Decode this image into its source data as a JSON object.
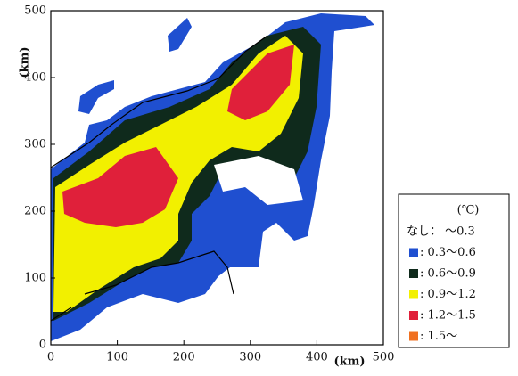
{
  "axes": {
    "xlabel": "(km)",
    "ylabel": "(km)",
    "xlim": [
      0,
      500
    ],
    "ylim": [
      0,
      500
    ],
    "xticks": [
      0,
      100,
      200,
      300,
      400,
      500
    ],
    "yticks": [
      0,
      100,
      200,
      300,
      400,
      500
    ]
  },
  "legend": {
    "unit": "(℃)",
    "items": [
      {
        "label": "なし： ～0.3"
      },
      {
        "label": ": 0.3～0.6",
        "color": "#1f4fd0"
      },
      {
        "label": ": 0.6～0.9",
        "color": "#0f2a1c"
      },
      {
        "label": ": 0.9～1.2",
        "color": "#f2f000"
      },
      {
        "label": ": 1.2～1.5",
        "color": "#e0203a"
      },
      {
        "label": ": 1.5～",
        "color": "#f07020"
      }
    ]
  }
}
